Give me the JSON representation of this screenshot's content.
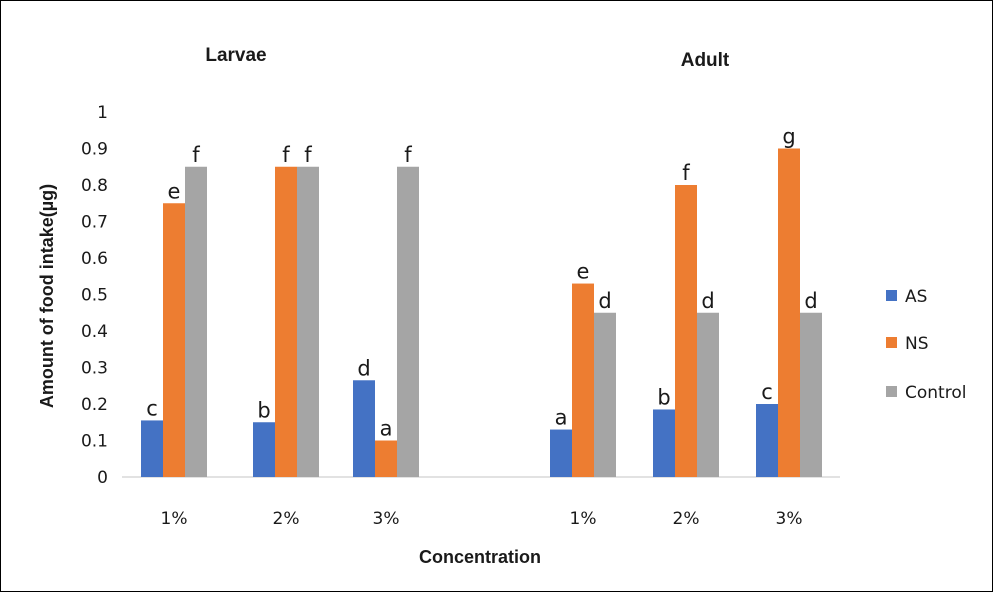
{
  "chart_data": {
    "type": "bar",
    "panel_titles": [
      "Larvae",
      "Adult"
    ],
    "xlabel": "Concentration",
    "ylabel": "Amount of food intake(µg)",
    "ylim": [
      0,
      1
    ],
    "yticks": [
      "0",
      "0.1",
      "0.2",
      "0.3",
      "0.4",
      "0.5",
      "0.6",
      "0.7",
      "0.8",
      "0.9",
      "1"
    ],
    "grid": false,
    "legend_position": "right",
    "groups": [
      {
        "panel": "Larvae",
        "categories": [
          "1%",
          "2%",
          "3%"
        ],
        "series": [
          {
            "name": "AS",
            "values": [
              0.155,
              0.15,
              0.265
            ],
            "labels": [
              "c",
              "b",
              "d"
            ]
          },
          {
            "name": "NS",
            "values": [
              0.75,
              0.85,
              0.1
            ],
            "labels": [
              "e",
              "f",
              "a"
            ]
          },
          {
            "name": "Control",
            "values": [
              0.85,
              0.85,
              0.85
            ],
            "labels": [
              "f",
              "f",
              "f"
            ]
          }
        ]
      },
      {
        "panel": "Adult",
        "categories": [
          "1%",
          "2%",
          "3%"
        ],
        "series": [
          {
            "name": "AS",
            "values": [
              0.13,
              0.185,
              0.2
            ],
            "labels": [
              "a",
              "b",
              "c"
            ]
          },
          {
            "name": "NS",
            "values": [
              0.53,
              0.8,
              0.9
            ],
            "labels": [
              "e",
              "f",
              "g"
            ]
          },
          {
            "name": "Control",
            "values": [
              0.45,
              0.45,
              0.45
            ],
            "labels": [
              "d",
              "d",
              "d"
            ]
          }
        ]
      }
    ],
    "legend": [
      "AS",
      "NS",
      "Control"
    ],
    "colors": {
      "AS": "#4472C4",
      "NS": "#ED7D31",
      "Control": "#A5A5A5"
    }
  }
}
